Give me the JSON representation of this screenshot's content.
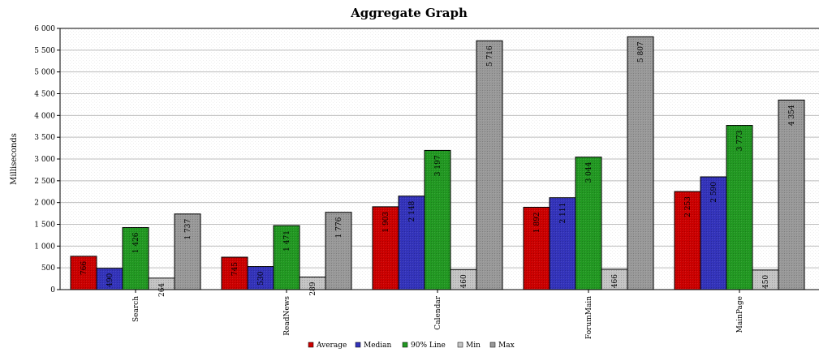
{
  "chart_data": {
    "type": "bar",
    "title": "Aggregate Graph",
    "xlabel": "",
    "ylabel": "Milliseconds",
    "ylim": [
      0,
      6000
    ],
    "yticks": [
      0,
      500,
      1000,
      1500,
      2000,
      2500,
      3000,
      3500,
      4000,
      4500,
      5000,
      5500,
      6000
    ],
    "ytick_labels": [
      "0",
      "500",
      "1 000",
      "1 500",
      "2 000",
      "2 500",
      "3 000",
      "3 500",
      "4 000",
      "4 500",
      "5 000",
      "5 500",
      "6 000"
    ],
    "grid": true,
    "legend_position": "bottom-center",
    "categories": [
      "Search",
      "ReadNews",
      "Calendar",
      "ForumMain",
      "MainPage"
    ],
    "series": [
      {
        "name": "Average",
        "color": "#cc0000",
        "values": [
          766,
          745,
          1903,
          1892,
          2253
        ],
        "labels": [
          "766",
          "745",
          "1 903",
          "1 892",
          "2 253"
        ]
      },
      {
        "name": "Median",
        "color": "#3333bb",
        "values": [
          490,
          530,
          2148,
          2111,
          2590
        ],
        "labels": [
          "490",
          "530",
          "2 148",
          "2 111",
          "2 590"
        ]
      },
      {
        "name": "90% Line",
        "color": "#229922",
        "values": [
          1426,
          1471,
          3197,
          3044,
          3773
        ],
        "labels": [
          "1 426",
          "1 471",
          "3 197",
          "3 044",
          "3 773"
        ]
      },
      {
        "name": "Min",
        "color": "#c4c4c4",
        "values": [
          264,
          289,
          460,
          466,
          450
        ],
        "labels": [
          "264",
          "289",
          "460",
          "466",
          "450"
        ]
      },
      {
        "name": "Max",
        "color": "#999999",
        "values": [
          1737,
          1776,
          5716,
          5807,
          4354
        ],
        "labels": [
          "1 737",
          "1 776",
          "5 716",
          "5 807",
          "4 354"
        ]
      }
    ]
  }
}
